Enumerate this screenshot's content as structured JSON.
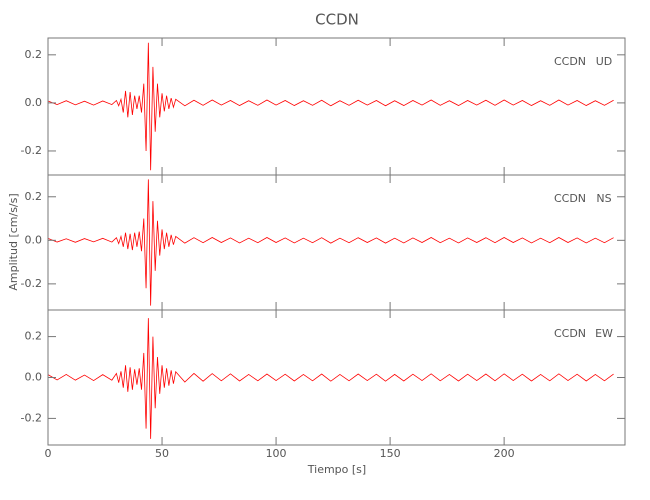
{
  "chart_data": {
    "type": "line",
    "title": "CCDN",
    "xlabel": "Tiempo [s]",
    "ylabel": "Amplitud [cm/s/s]",
    "x": [
      0,
      4,
      8,
      12,
      16,
      20,
      24,
      28,
      30,
      31,
      32,
      33,
      34,
      35,
      36,
      37,
      38,
      39,
      40,
      41,
      42,
      43,
      44,
      45,
      46,
      47,
      48,
      49,
      50,
      51,
      52,
      53,
      54,
      55,
      56,
      60,
      64,
      68,
      72,
      76,
      80,
      84,
      88,
      92,
      96,
      100,
      104,
      108,
      112,
      116,
      120,
      124,
      128,
      132,
      136,
      140,
      144,
      148,
      152,
      156,
      160,
      164,
      168,
      172,
      176,
      180,
      184,
      188,
      192,
      196,
      200,
      204,
      208,
      212,
      216,
      220,
      224,
      228,
      232,
      236,
      240,
      244,
      248
    ],
    "xlim": [
      0,
      253
    ],
    "xticks": [
      0,
      50,
      100,
      150,
      200
    ],
    "series": [
      {
        "station": "CCDN",
        "name": "UD",
        "color": "#ff0000",
        "ylim": [
          -0.3,
          0.27
        ],
        "yticks": [
          -0.2,
          {
            "value": 0,
            "label": "0.0"
          },
          0.2
        ],
        "values": [
          0.008,
          -0.007,
          0.009,
          -0.008,
          0.007,
          -0.009,
          0.008,
          -0.007,
          0.01,
          -0.012,
          0.015,
          -0.04,
          0.05,
          -0.06,
          0.045,
          -0.05,
          0.03,
          -0.025,
          0.03,
          -0.04,
          0.08,
          -0.2,
          0.25,
          -0.28,
          0.15,
          -0.12,
          0.08,
          -0.06,
          0.04,
          -0.035,
          0.03,
          -0.025,
          0.02,
          -0.018,
          0.015,
          -0.012,
          0.011,
          -0.01,
          0.012,
          -0.009,
          0.01,
          -0.011,
          0.009,
          -0.01,
          0.012,
          -0.009,
          0.01,
          -0.011,
          0.009,
          -0.01,
          0.011,
          -0.012,
          0.009,
          -0.01,
          0.011,
          -0.009,
          0.01,
          -0.012,
          0.009,
          -0.011,
          0.01,
          -0.009,
          0.012,
          -0.01,
          0.009,
          -0.011,
          0.01,
          -0.009,
          0.011,
          -0.01,
          0.012,
          -0.009,
          0.01,
          -0.011,
          0.009,
          -0.01,
          0.012,
          -0.009,
          0.01,
          -0.011,
          0.009,
          -0.01,
          0.011
        ]
      },
      {
        "station": "CCDN",
        "name": "NS",
        "color": "#ff0000",
        "ylim": [
          -0.32,
          0.3
        ],
        "yticks": [
          -0.2,
          {
            "value": 0,
            "label": "0.0"
          },
          0.2
        ],
        "values": [
          0.009,
          -0.008,
          0.007,
          -0.009,
          0.008,
          -0.007,
          0.009,
          -0.008,
          0.012,
          -0.015,
          0.018,
          -0.03,
          0.035,
          -0.04,
          0.03,
          -0.045,
          0.035,
          -0.03,
          0.04,
          -0.05,
          0.1,
          -0.22,
          0.28,
          -0.3,
          0.18,
          -0.14,
          0.09,
          -0.07,
          0.05,
          -0.04,
          0.035,
          -0.03,
          0.025,
          -0.02,
          0.018,
          -0.013,
          0.012,
          -0.011,
          0.013,
          -0.01,
          0.011,
          -0.012,
          0.01,
          -0.011,
          0.013,
          -0.01,
          0.011,
          -0.012,
          0.01,
          -0.011,
          0.012,
          -0.013,
          0.01,
          -0.011,
          0.012,
          -0.01,
          0.011,
          -0.013,
          0.01,
          -0.012,
          0.011,
          -0.01,
          0.013,
          -0.011,
          0.01,
          -0.012,
          0.011,
          -0.01,
          0.012,
          -0.011,
          0.013,
          -0.01,
          0.011,
          -0.012,
          0.01,
          -0.011,
          0.013,
          -0.01,
          0.011,
          -0.012,
          0.01,
          -0.011,
          0.012
        ]
      },
      {
        "station": "CCDN",
        "name": "EW",
        "color": "#ff0000",
        "ylim": [
          -0.33,
          0.33
        ],
        "yticks": [
          -0.2,
          {
            "value": 0,
            "label": "0.0"
          },
          0.2
        ],
        "values": [
          0.014,
          -0.012,
          0.015,
          -0.013,
          0.012,
          -0.015,
          0.014,
          -0.013,
          0.02,
          -0.025,
          0.03,
          -0.05,
          0.06,
          -0.07,
          0.05,
          -0.06,
          0.04,
          -0.035,
          0.045,
          -0.06,
          0.12,
          -0.25,
          0.29,
          -0.3,
          0.2,
          -0.15,
          0.1,
          -0.08,
          0.06,
          -0.05,
          0.045,
          -0.04,
          0.035,
          -0.03,
          0.028,
          -0.022,
          0.02,
          -0.018,
          0.019,
          -0.016,
          0.018,
          -0.017,
          0.015,
          -0.016,
          0.017,
          -0.015,
          0.016,
          -0.017,
          0.015,
          -0.016,
          0.017,
          -0.018,
          0.015,
          -0.016,
          0.017,
          -0.015,
          0.016,
          -0.018,
          0.015,
          -0.017,
          0.016,
          -0.015,
          0.018,
          -0.016,
          0.015,
          -0.017,
          0.016,
          -0.015,
          0.017,
          -0.016,
          0.018,
          -0.015,
          0.016,
          -0.017,
          0.015,
          -0.016,
          0.018,
          -0.015,
          0.016,
          -0.017,
          0.015,
          -0.016,
          0.017
        ]
      }
    ]
  }
}
